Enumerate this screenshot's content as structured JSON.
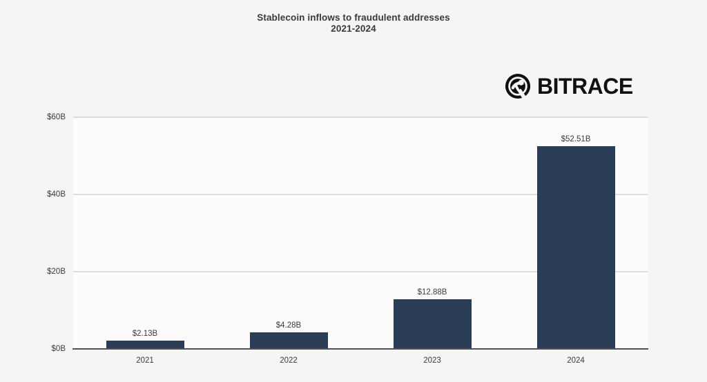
{
  "title": {
    "line1": "Stablecoin inflows to fraudulent addresses",
    "line2": "2021-2024"
  },
  "brand": {
    "name": "BITRACE",
    "icon": "bitrace-circle-logo"
  },
  "chart_data": {
    "type": "bar",
    "title": "Stablecoin inflows to fraudulent addresses",
    "subtitle": "2021-2024",
    "categories": [
      "2021",
      "2022",
      "2023",
      "2024"
    ],
    "values": [
      2.13,
      4.28,
      12.88,
      52.51
    ],
    "value_labels": [
      "$2.13B",
      "$4.28B",
      "$12.88B",
      "$52.51B"
    ],
    "xlabel": "",
    "ylabel": "",
    "ylim": [
      0,
      60
    ],
    "y_ticks": [
      {
        "value": 0,
        "label": "$0B"
      },
      {
        "value": 20,
        "label": "$20B"
      },
      {
        "value": 40,
        "label": "$40B"
      },
      {
        "value": 60,
        "label": "$60B"
      }
    ],
    "grid": "horizontal",
    "legend_position": "none",
    "bar_color": "#2a3c56"
  },
  "colors": {
    "page_background": "#f5f5f6",
    "plot_background": "#fcfcfd",
    "bar": "#2a3c56",
    "gridline": "#dddde0",
    "axis_line": "#505156",
    "text": "#3a3a3a",
    "brand_text": "#101010"
  }
}
